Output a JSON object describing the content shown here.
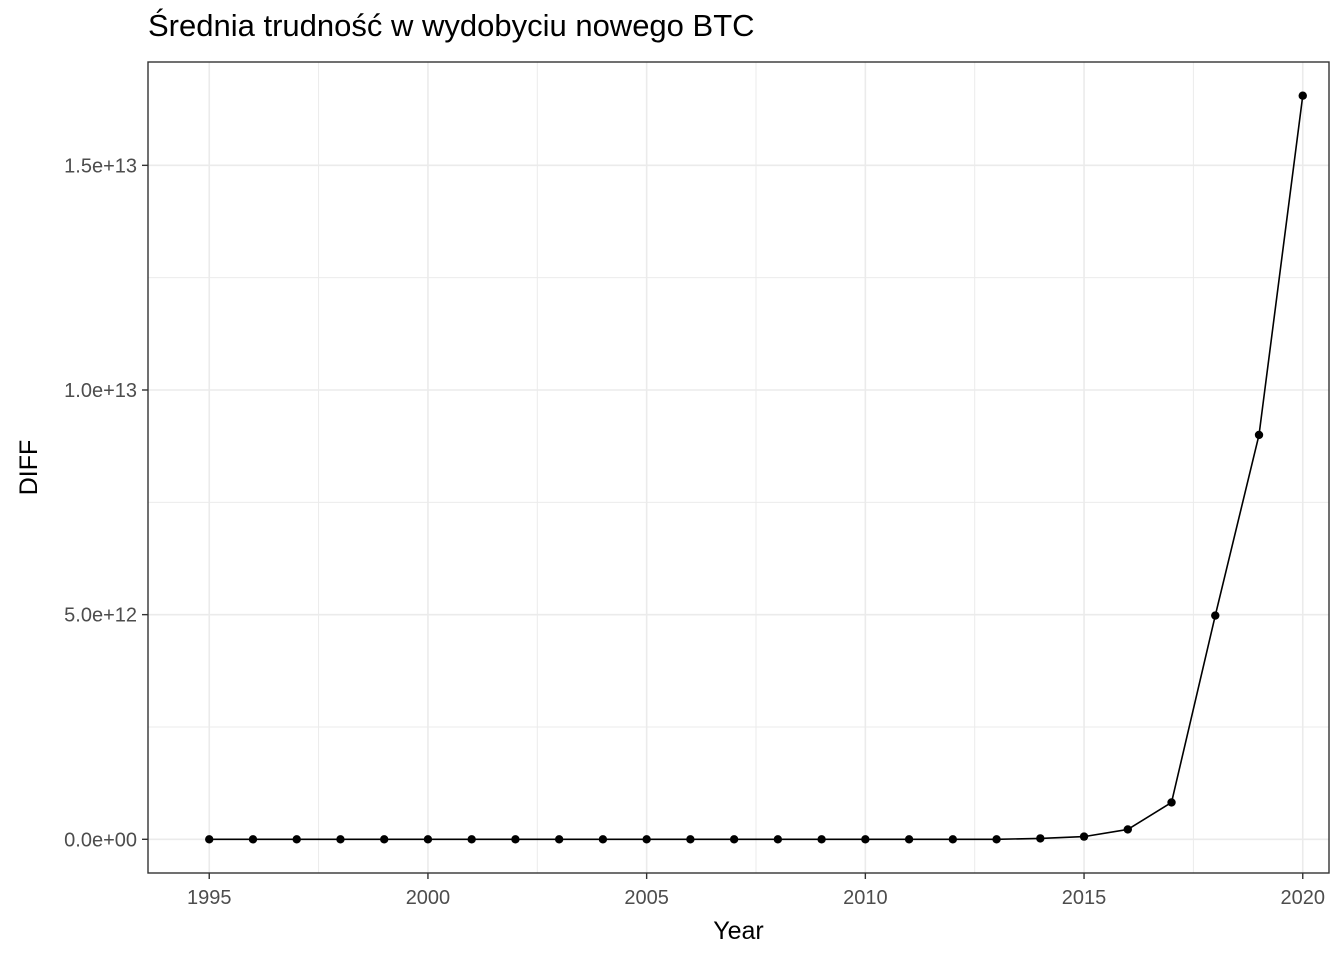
{
  "chart_data": {
    "type": "line",
    "title": "Średnia trudność w wydobyciu nowego BTC",
    "xlabel": "Year",
    "ylabel": "DIFF",
    "xlim": [
      1993.6,
      2020.6
    ],
    "ylim": [
      -750000000000.0,
      17300000000000.0
    ],
    "x_ticks": [
      1995,
      2000,
      2005,
      2010,
      2015,
      2020
    ],
    "x_tick_labels": [
      "1995",
      "2000",
      "2005",
      "2010",
      "2015",
      "2020"
    ],
    "y_ticks": [
      0,
      5000000000000,
      10000000000000,
      15000000000000
    ],
    "y_tick_labels": [
      "0.0e+00",
      "5.0e+12",
      "1.0e+13",
      "1.5e+13"
    ],
    "grid": true,
    "legend": "none",
    "series": [
      {
        "x": [
          1995,
          1996,
          1997,
          1998,
          1999,
          2000,
          2001,
          2002,
          2003,
          2004,
          2005,
          2006,
          2007,
          2008,
          2009,
          2010,
          2011,
          2012,
          2013,
          2014,
          2015,
          2016,
          2017,
          2018,
          2019,
          2020
        ],
        "values": [
          0,
          0,
          0,
          0,
          0,
          0,
          0,
          0,
          0,
          0,
          0,
          0,
          0,
          0,
          0,
          0,
          0,
          0,
          0,
          20000000000,
          60000000000,
          220000000000,
          820000000000,
          4980000000000,
          9000000000000,
          16550000000000
        ]
      }
    ],
    "style": {
      "line_color": "#000000",
      "point_color": "#000000",
      "grid_color": "#ebebeb",
      "panel_border": "#333333",
      "tick_label_color": "#4d4d4d"
    }
  }
}
